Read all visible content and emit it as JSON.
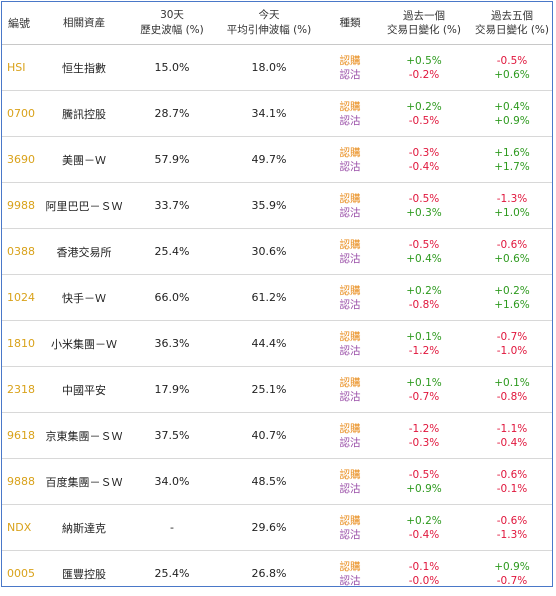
{
  "headers": {
    "code": "編號",
    "asset": "相關資產",
    "hist_line1": "30天",
    "hist_line2": "歷史波幅 (%)",
    "impl_line1": "今天",
    "impl_line2": "平均引伸波幅 (%)",
    "type": "種類",
    "d1_line1": "過去一個",
    "d1_line2": "交易日變化 (%)",
    "d5_line1": "過去五個",
    "d5_line2": "交易日變化 (%)"
  },
  "labels": {
    "call": "認購",
    "put": "認沽"
  },
  "rows": [
    {
      "code": "HSI",
      "name": "恒生指數",
      "hist": "15.0%",
      "impl": "18.0%",
      "d1_call": "+0.5%",
      "d1_put": "-0.2%",
      "d5_call": "-0.5%",
      "d5_put": "+0.6%"
    },
    {
      "code": "0700",
      "name": "騰訊控股",
      "hist": "28.7%",
      "impl": "34.1%",
      "d1_call": "+0.2%",
      "d1_put": "-0.5%",
      "d5_call": "+0.4%",
      "d5_put": "+0.9%"
    },
    {
      "code": "3690",
      "name": "美團－Ｗ",
      "hist": "57.9%",
      "impl": "49.7%",
      "d1_call": "-0.3%",
      "d1_put": "-0.4%",
      "d5_call": "+1.6%",
      "d5_put": "+1.7%"
    },
    {
      "code": "9988",
      "name": "阿里巴巴－ＳＷ",
      "hist": "33.7%",
      "impl": "35.9%",
      "d1_call": "-0.5%",
      "d1_put": "+0.3%",
      "d5_call": "-1.3%",
      "d5_put": "+1.0%"
    },
    {
      "code": "0388",
      "name": "香港交易所",
      "hist": "25.4%",
      "impl": "30.6%",
      "d1_call": "-0.5%",
      "d1_put": "+0.4%",
      "d5_call": "-0.6%",
      "d5_put": "+0.6%"
    },
    {
      "code": "1024",
      "name": "快手－Ｗ",
      "hist": "66.0%",
      "impl": "61.2%",
      "d1_call": "+0.2%",
      "d1_put": "-0.8%",
      "d5_call": "+0.2%",
      "d5_put": "+1.6%"
    },
    {
      "code": "1810",
      "name": "小米集團－Ｗ",
      "hist": "36.3%",
      "impl": "44.4%",
      "d1_call": "+0.1%",
      "d1_put": "-1.2%",
      "d5_call": "-0.7%",
      "d5_put": "-1.0%"
    },
    {
      "code": "2318",
      "name": "中國平安",
      "hist": "17.9%",
      "impl": "25.1%",
      "d1_call": "+0.1%",
      "d1_put": "-0.7%",
      "d5_call": "+0.1%",
      "d5_put": "-0.8%"
    },
    {
      "code": "9618",
      "name": "京東集團－ＳＷ",
      "hist": "37.5%",
      "impl": "40.7%",
      "d1_call": "-1.2%",
      "d1_put": "-0.3%",
      "d5_call": "-1.1%",
      "d5_put": "-0.4%"
    },
    {
      "code": "9888",
      "name": "百度集團－ＳＷ",
      "hist": "34.0%",
      "impl": "48.5%",
      "d1_call": "-0.5%",
      "d1_put": "+0.9%",
      "d5_call": "-0.6%",
      "d5_put": "-0.1%"
    },
    {
      "code": "NDX",
      "name": "納斯達克",
      "hist": "-",
      "impl": "29.6%",
      "d1_call": "+0.2%",
      "d1_put": "-0.4%",
      "d5_call": "-0.6%",
      "d5_put": "-1.3%"
    },
    {
      "code": "0005",
      "name": "匯豐控股",
      "hist": "25.4%",
      "impl": "26.8%",
      "d1_call": "-0.1%",
      "d1_put": "-0.0%",
      "d5_call": "+0.9%",
      "d5_put": "-0.7%"
    }
  ],
  "colors": {
    "code": "#d9a21b",
    "call_label": "#e88a17",
    "put_label": "#9a4fa8",
    "positive": "#2e9a1f",
    "negative": "#e0163c",
    "border": "#4a78c8"
  }
}
